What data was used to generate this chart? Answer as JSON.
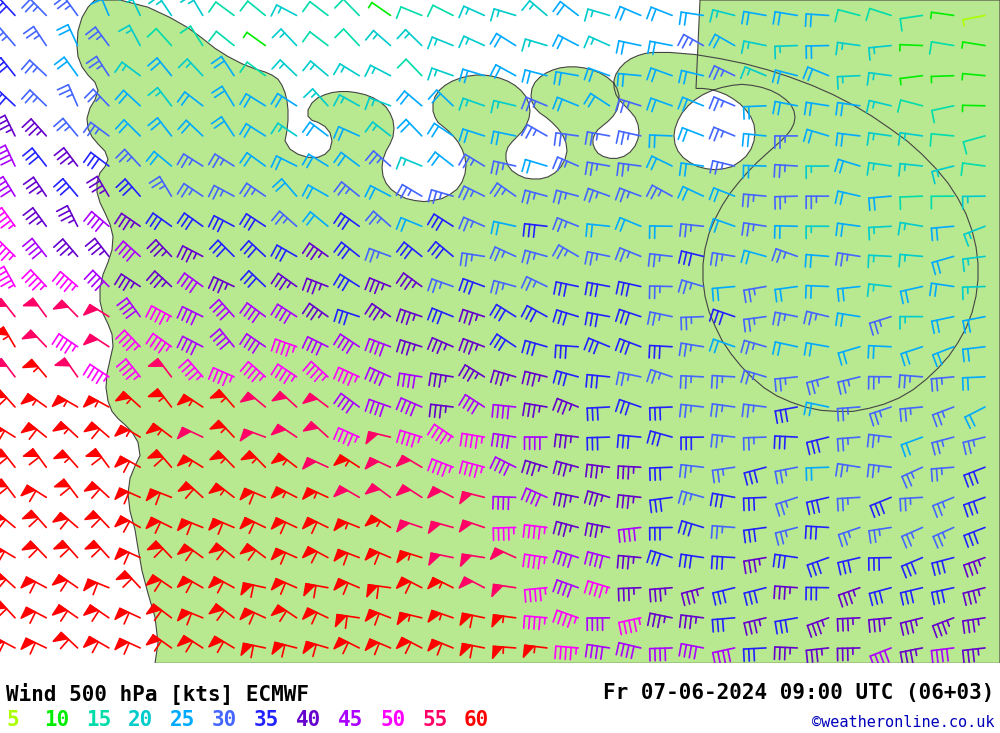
{
  "title_left": "Wind 500 hPa [kts] ECMWF",
  "title_right": "Fr 07-06-2024 09:00 UTC (06+03)",
  "watermark": "©weatheronline.co.uk",
  "legend_values": [
    5,
    10,
    15,
    20,
    25,
    30,
    35,
    40,
    45,
    50,
    55,
    60
  ],
  "legend_colors": [
    "#aaff00",
    "#00ee00",
    "#00ddaa",
    "#00cccc",
    "#00aaff",
    "#4466ff",
    "#2222ff",
    "#6600cc",
    "#aa00ff",
    "#ff00ff",
    "#ff0066",
    "#ff0000"
  ],
  "background_color": "#d8d8d8",
  "land_color": "#b8e890",
  "title_fontsize": 15,
  "legend_fontsize": 15,
  "watermark_fontsize": 11,
  "fig_width": 10.0,
  "fig_height": 7.33
}
